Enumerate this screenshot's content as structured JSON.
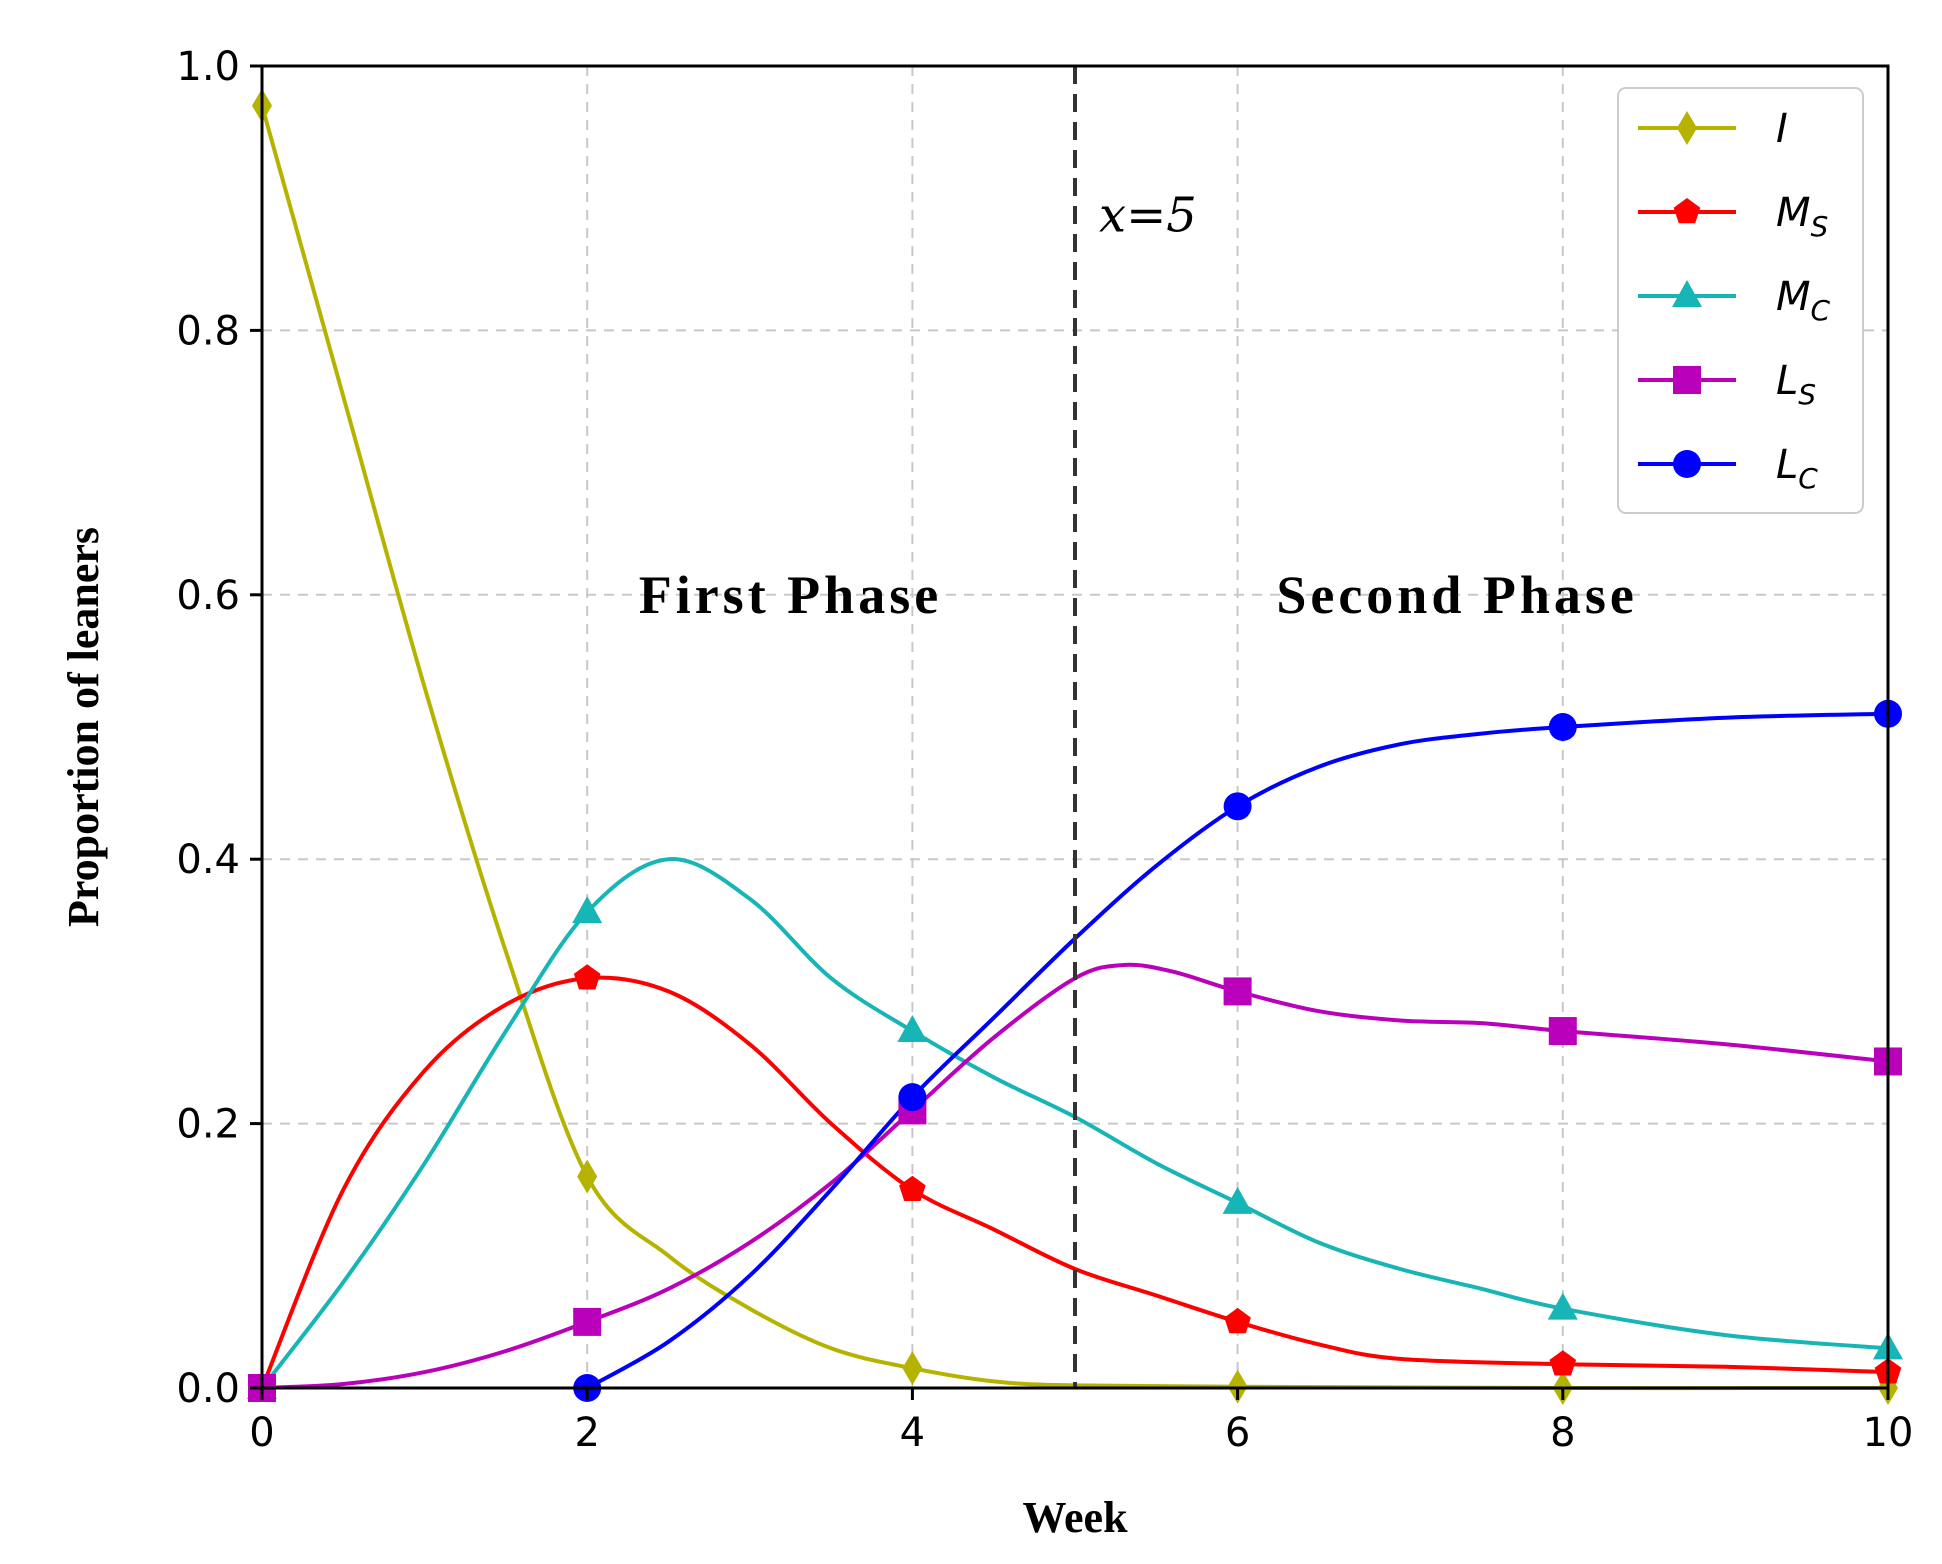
{
  "chart_data": {
    "type": "line",
    "xlabel": "Week",
    "ylabel": "Proportion of leaners",
    "xlim": [
      0,
      10
    ],
    "ylim": [
      0,
      1.0
    ],
    "xticks": [
      "0",
      "2",
      "4",
      "6",
      "8",
      "10"
    ],
    "yticks": [
      "0.0",
      "0.2",
      "0.4",
      "0.6",
      "0.8",
      "1.0"
    ],
    "grid": true,
    "legend_position": "top-right",
    "annotations": {
      "vline_x": 5,
      "vline_label": "x=5",
      "phase1": "First Phase",
      "phase2": "Second Phase"
    },
    "series": [
      {
        "name": "I",
        "main": "I",
        "sub": "",
        "color": "#b5b300",
        "marker": "diamond",
        "curve": [
          [
            0,
            0.97
          ],
          [
            0.5,
            0.75
          ],
          [
            1,
            0.53
          ],
          [
            1.5,
            0.33
          ],
          [
            2,
            0.16
          ],
          [
            2.5,
            0.1
          ],
          [
            3,
            0.06
          ],
          [
            3.5,
            0.03
          ],
          [
            4,
            0.015
          ],
          [
            4.5,
            0.005
          ],
          [
            5,
            0.002
          ],
          [
            6,
            0.001
          ],
          [
            8,
            0.0
          ],
          [
            10,
            0.0
          ]
        ],
        "markers": [
          [
            0,
            0.97
          ],
          [
            2,
            0.16
          ],
          [
            4,
            0.015
          ],
          [
            6,
            0.001
          ],
          [
            8,
            0.0
          ],
          [
            10,
            0.0
          ]
        ]
      },
      {
        "name": "M_S",
        "main": "M",
        "sub": "S",
        "color": "#ff0000",
        "marker": "pentagon",
        "curve": [
          [
            0,
            0.0
          ],
          [
            0.5,
            0.15
          ],
          [
            1,
            0.24
          ],
          [
            1.5,
            0.29
          ],
          [
            2,
            0.31
          ],
          [
            2.5,
            0.3
          ],
          [
            3,
            0.26
          ],
          [
            3.5,
            0.2
          ],
          [
            4,
            0.15
          ],
          [
            4.5,
            0.12
          ],
          [
            5,
            0.09
          ],
          [
            5.5,
            0.07
          ],
          [
            6,
            0.05
          ],
          [
            6.5,
            0.033
          ],
          [
            7,
            0.022
          ],
          [
            8,
            0.018
          ],
          [
            9,
            0.016
          ],
          [
            10,
            0.012
          ]
        ],
        "markers": [
          [
            0,
            0.0
          ],
          [
            2,
            0.31
          ],
          [
            4,
            0.15
          ],
          [
            6,
            0.05
          ],
          [
            8,
            0.018
          ],
          [
            10,
            0.012
          ]
        ]
      },
      {
        "name": "M_C",
        "main": "M",
        "sub": "C",
        "color": "#17b5b5",
        "marker": "triangle",
        "curve": [
          [
            0,
            0.0
          ],
          [
            0.5,
            0.08
          ],
          [
            1,
            0.17
          ],
          [
            1.5,
            0.27
          ],
          [
            2,
            0.36
          ],
          [
            2.5,
            0.4
          ],
          [
            3,
            0.37
          ],
          [
            3.5,
            0.31
          ],
          [
            4,
            0.27
          ],
          [
            4.5,
            0.235
          ],
          [
            5,
            0.205
          ],
          [
            5.5,
            0.17
          ],
          [
            6,
            0.14
          ],
          [
            6.5,
            0.11
          ],
          [
            7,
            0.09
          ],
          [
            7.5,
            0.075
          ],
          [
            8,
            0.06
          ],
          [
            9,
            0.04
          ],
          [
            10,
            0.03
          ]
        ],
        "markers": [
          [
            0,
            0.0
          ],
          [
            2,
            0.36
          ],
          [
            4,
            0.27
          ],
          [
            6,
            0.14
          ],
          [
            8,
            0.06
          ],
          [
            10,
            0.03
          ]
        ]
      },
      {
        "name": "L_S",
        "main": "L",
        "sub": "S",
        "color": "#bb00bb",
        "marker": "square",
        "curve": [
          [
            0,
            0.0
          ],
          [
            0.5,
            0.003
          ],
          [
            1,
            0.012
          ],
          [
            1.5,
            0.028
          ],
          [
            2,
            0.05
          ],
          [
            2.5,
            0.075
          ],
          [
            3,
            0.11
          ],
          [
            3.5,
            0.155
          ],
          [
            4,
            0.21
          ],
          [
            4.5,
            0.265
          ],
          [
            5,
            0.31
          ],
          [
            5.3,
            0.32
          ],
          [
            5.6,
            0.315
          ],
          [
            6,
            0.3
          ],
          [
            6.5,
            0.285
          ],
          [
            7,
            0.278
          ],
          [
            7.5,
            0.276
          ],
          [
            8,
            0.27
          ],
          [
            9,
            0.26
          ],
          [
            10,
            0.247
          ]
        ],
        "markers": [
          [
            0,
            0.0
          ],
          [
            2,
            0.05
          ],
          [
            4,
            0.21
          ],
          [
            6,
            0.3
          ],
          [
            8,
            0.27
          ],
          [
            10,
            0.247
          ]
        ]
      },
      {
        "name": "L_C",
        "main": "L",
        "sub": "C",
        "color": "#0000ff",
        "marker": "circle",
        "curve": [
          [
            2,
            0.0
          ],
          [
            2.5,
            0.035
          ],
          [
            3,
            0.085
          ],
          [
            3.5,
            0.15
          ],
          [
            4,
            0.22
          ],
          [
            4.5,
            0.28
          ],
          [
            5,
            0.34
          ],
          [
            5.5,
            0.395
          ],
          [
            6,
            0.44
          ],
          [
            6.5,
            0.47
          ],
          [
            7,
            0.487
          ],
          [
            7.5,
            0.495
          ],
          [
            8,
            0.5
          ],
          [
            9,
            0.507
          ],
          [
            10,
            0.51
          ]
        ],
        "markers": [
          [
            2,
            0.0
          ],
          [
            4,
            0.22
          ],
          [
            6,
            0.44
          ],
          [
            8,
            0.5
          ],
          [
            10,
            0.51
          ]
        ]
      }
    ]
  }
}
